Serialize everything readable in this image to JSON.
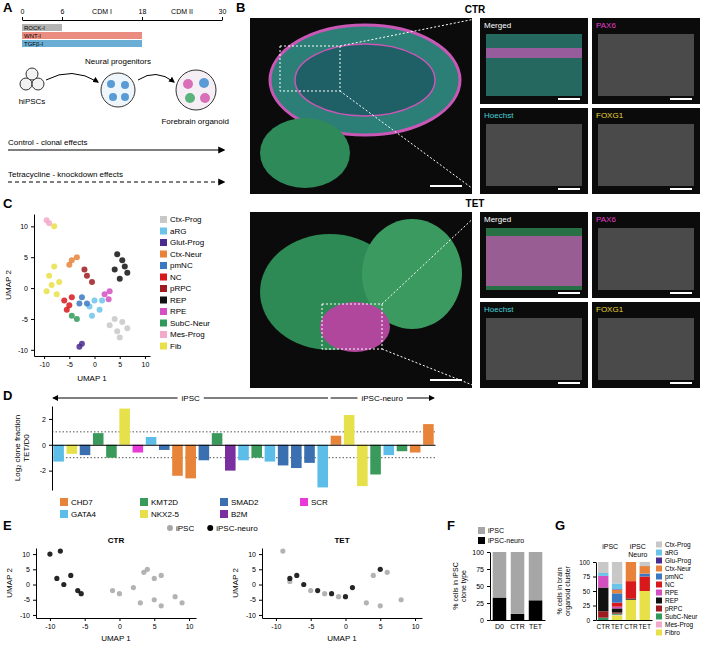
{
  "panel_letters": [
    "A",
    "B",
    "C",
    "D",
    "E",
    "F",
    "G"
  ],
  "panel_a": {
    "timeline": {
      "range": [
        0,
        30
      ],
      "ticks": [
        0,
        6,
        18,
        30
      ],
      "phases": [
        {
          "label": "CDM I",
          "from": 6,
          "to": 18
        },
        {
          "label": "CDM II",
          "from": 18,
          "to": 30
        }
      ]
    },
    "treatments": [
      {
        "label": "ROCK-I",
        "from": 0,
        "to": 6,
        "color": "#b3b3b3"
      },
      {
        "label": "WNT-I",
        "from": 0,
        "to": 18,
        "color": "#ea8c80"
      },
      {
        "label": "TGFβ-I",
        "from": 0,
        "to": 18,
        "color": "#6aaed6"
      }
    ],
    "stages": [
      "hiPSCs",
      "Neural progenitors",
      "Forebrain organoid"
    ],
    "arrows": [
      {
        "label": "Control - clonal effects",
        "line_style": "solid"
      },
      {
        "label": "Tetracycline - knockdown effects",
        "line_style": "dashed"
      }
    ]
  },
  "panel_b": {
    "conditions": [
      "CTR",
      "TET"
    ],
    "channels": [
      {
        "label": "Merged",
        "color": "#ffffff"
      },
      {
        "label": "PAX6",
        "color": "#e23fc8"
      },
      {
        "label": "Hoechst",
        "color": "#49d2d6"
      },
      {
        "label": "FOXG1",
        "color": "#ecd63a"
      }
    ]
  },
  "chart_data": [
    {
      "type": "scatter",
      "x_label": "UMAP 1",
      "y_label": "UMAP 2",
      "xlim": [
        -12,
        11
      ],
      "ylim": [
        -11,
        12
      ],
      "xticks": [
        -10,
        -5,
        0,
        5,
        10
      ],
      "yticks": [
        -10,
        -5,
        0,
        5,
        10
      ],
      "grid": false,
      "legend": "right",
      "series": [
        {
          "name": "Ctx-Prog",
          "color": "#c8c8c8",
          "x": [
            3,
            4.5,
            5.5,
            6.5,
            4,
            5
          ],
          "values": [
            -6,
            -7,
            -5.5,
            -6.5,
            -5,
            -8
          ]
        },
        {
          "name": "aRG",
          "color": "#6cc3ea",
          "x": [
            -1,
            0,
            1,
            -0.5,
            1.5
          ],
          "values": [
            -3,
            -2,
            -3.5,
            -4.5,
            -2
          ]
        },
        {
          "name": "Glut-Prog",
          "color": "#4a2c8f",
          "x": [
            -3,
            -2.5
          ],
          "values": [
            -9.5,
            -9
          ]
        },
        {
          "name": "Ctx-Neur",
          "color": "#e8823a",
          "x": [
            -4.5,
            -3.5,
            -5
          ],
          "values": [
            4.5,
            5,
            3.8
          ]
        },
        {
          "name": "pmNC",
          "color": "#3b78c2",
          "x": [
            -2.5,
            -1.5,
            -3
          ],
          "values": [
            -1.5,
            -2.5,
            -2.5
          ]
        },
        {
          "name": "NC",
          "color": "#d7191c",
          "x": [
            -6,
            -5,
            -4.5,
            -5.5
          ],
          "values": [
            -2,
            -2.8,
            -1.5,
            -3.5
          ]
        },
        {
          "name": "pRPC",
          "color": "#9e1b1f",
          "x": [
            -1.5,
            -0.5,
            -2
          ],
          "values": [
            2,
            1,
            3
          ]
        },
        {
          "name": "REP",
          "color": "#111111",
          "x": [
            4,
            5.5,
            6.5,
            5,
            4.5,
            6
          ],
          "values": [
            3,
            4.5,
            2.5,
            1.5,
            5.5,
            3.5
          ]
        },
        {
          "name": "RPE",
          "color": "#d44fc0",
          "x": [
            2,
            2.8,
            3
          ],
          "values": [
            -1,
            -1.8,
            -0.5
          ]
        },
        {
          "name": "SubC-Neur",
          "color": "#2f9a5a",
          "x": [
            -4.5,
            -3.5
          ],
          "values": [
            -4.5,
            -5
          ]
        },
        {
          "name": "Mes-Prog",
          "color": "#f3a9c9",
          "x": [
            -9.5,
            -9
          ],
          "values": [
            11,
            10.5
          ]
        },
        {
          "name": "Fib",
          "color": "#e8e048",
          "x": [
            -9,
            -8,
            -7,
            -9.5,
            -8.5,
            -7.5,
            -8
          ],
          "values": [
            2,
            3.5,
            1,
            -0.5,
            0.5,
            -1,
            10
          ]
        }
      ]
    },
    {
      "type": "bar",
      "y_label": "Log₂ clone fraction TET/D0",
      "categories": [
        null,
        null,
        null,
        null,
        null,
        null,
        null,
        null,
        null,
        null,
        null,
        null,
        null,
        null,
        null,
        null,
        null,
        null,
        null,
        null,
        null,
        null,
        null,
        null,
        null,
        null,
        null,
        null,
        null
      ],
      "ylim": [
        -3.5,
        3
      ],
      "yticks": [
        -2,
        0,
        2
      ],
      "reference_lines": [
        1,
        -1
      ],
      "grid": false,
      "legend": "bottom",
      "tick_labels": "y",
      "groups": [
        {
          "label": "iPSC",
          "from": 0,
          "to": 20
        },
        {
          "label": "iPSC-neuro",
          "from": 21,
          "to": 28
        }
      ],
      "series": [
        {
          "name": "CHD7",
          "color": "#e8833a",
          "values": [
            null,
            null,
            null,
            null,
            null,
            null,
            null,
            null,
            null,
            -2.4,
            -2.6,
            null,
            null,
            null,
            null,
            null,
            null,
            null,
            null,
            null,
            null,
            0.7,
            null,
            null,
            null,
            null,
            null,
            -0.6,
            1.6
          ]
        },
        {
          "name": "KMT2D",
          "color": "#3a9a5b",
          "values": [
            null,
            null,
            null,
            0.9,
            -1.0,
            null,
            null,
            null,
            null,
            null,
            null,
            null,
            0.9,
            null,
            null,
            -1.0,
            null,
            null,
            null,
            null,
            null,
            null,
            null,
            null,
            -2.3,
            null,
            -0.5,
            null,
            null
          ]
        },
        {
          "name": "SMAD2",
          "color": "#3a6fb0",
          "values": [
            null,
            null,
            -0.8,
            null,
            null,
            null,
            null,
            null,
            -0.4,
            null,
            null,
            -1.2,
            null,
            null,
            null,
            null,
            null,
            -1.6,
            -1.8,
            -1.4,
            null,
            null,
            null,
            null,
            null,
            null,
            null,
            null,
            null
          ]
        },
        {
          "name": "SCR",
          "color": "#e83ad8",
          "values": [
            null,
            null,
            null,
            null,
            null,
            null,
            -0.6,
            null,
            null,
            null,
            null,
            null,
            null,
            null,
            null,
            null,
            null,
            null,
            null,
            null,
            null,
            null,
            null,
            null,
            null,
            null,
            null,
            null,
            null
          ]
        },
        {
          "name": "GATA4",
          "color": "#5bbde8",
          "values": [
            -1.3,
            null,
            null,
            null,
            null,
            null,
            null,
            0.6,
            null,
            null,
            null,
            null,
            null,
            null,
            -1.2,
            null,
            -1.3,
            null,
            null,
            null,
            -3.3,
            null,
            null,
            null,
            null,
            -0.8,
            null,
            null,
            null
          ]
        },
        {
          "name": "NKX2-5",
          "color": "#e6e04a",
          "values": [
            null,
            -0.7,
            null,
            null,
            null,
            2.8,
            null,
            null,
            null,
            null,
            null,
            null,
            null,
            null,
            null,
            null,
            null,
            null,
            null,
            null,
            null,
            null,
            2.3,
            -3.2,
            null,
            null,
            null,
            null,
            null
          ]
        },
        {
          "name": "B2M",
          "color": "#7a2fa0",
          "values": [
            null,
            null,
            null,
            null,
            null,
            null,
            null,
            null,
            null,
            null,
            null,
            null,
            null,
            -2.0,
            null,
            null,
            null,
            null,
            null,
            null,
            null,
            null,
            null,
            null,
            null,
            null,
            null,
            null,
            null
          ]
        }
      ]
    },
    {
      "type": "scatter",
      "x_label": "UMAP 1",
      "y_label": "UMAP 2",
      "xlim": [
        -12,
        11
      ],
      "ylim": [
        -11,
        12
      ],
      "xticks": [
        -10,
        -5,
        0,
        5,
        10
      ],
      "yticks": [
        -10,
        -5,
        0,
        5,
        10
      ],
      "grid": false,
      "legend": "top",
      "panels": [
        {
          "title": "CTR",
          "series": [
            {
              "name": "iPSC",
              "color": "#a6a6a6",
              "x": [
                3,
                5,
                6,
                4,
                5,
                0,
                -1,
                2,
                8,
                9,
                6,
                3.5
              ],
              "values": [
                -6,
                -5,
                3,
                5,
                2,
                -3,
                -2,
                -1,
                -4,
                -6,
                -7,
                4
              ]
            },
            {
              "name": "iPSC-neuro",
              "color": "#000000",
              "x": [
                -9,
                -8,
                -7,
                -10,
                -6,
                -5.5,
                -8.5
              ],
              "values": [
                2,
                0,
                3,
                10,
                -2,
                -3,
                11
              ]
            }
          ]
        },
        {
          "title": "TET",
          "series": [
            {
              "color": "#a6a6a6",
              "x": [
                3,
                5,
                -5,
                -3,
                -8,
                6,
                8,
                -1,
                4,
                -9
              ],
              "values": [
                -6,
                -7,
                -2,
                -3,
                1,
                4,
                -5,
                -4,
                3,
                11
              ]
            },
            {
              "color": "#000000",
              "x": [
                -4,
                -8,
                -6,
                -2,
                0,
                5,
                -7,
                1
              ],
              "values": [
                -2,
                2,
                0,
                -3,
                -4,
                5,
                3,
                -1
              ]
            }
          ]
        }
      ]
    },
    {
      "type": "bar",
      "stacked": true,
      "y_label": "% cells in iPSC clone type",
      "categories": [
        "D0",
        "CTR",
        "TET"
      ],
      "ylim": [
        0,
        100
      ],
      "yticks": [
        0,
        25,
        50,
        75,
        100
      ],
      "grid": false,
      "legend": "top",
      "series": [
        {
          "name": "iPSC-neuro",
          "color": "#000000",
          "values": [
            33,
            9,
            29
          ]
        },
        {
          "name": "iPSC",
          "color": "#a6a6a6",
          "values": [
            67,
            91,
            71
          ]
        }
      ]
    },
    {
      "type": "bar",
      "stacked": true,
      "y_label": "% cells in brain organoid cluster",
      "categories": [
        "CTR",
        "TET",
        "CTR",
        "TET"
      ],
      "ylim": [
        0,
        100
      ],
      "yticks": [
        0,
        25,
        50,
        75,
        100
      ],
      "grid": false,
      "legend": "right",
      "groups": [
        {
          "label": "iPSC",
          "from": 0,
          "to": 1
        },
        {
          "label": "iPSC Neuro",
          "from": 2,
          "to": 3
        }
      ],
      "series": [
        {
          "name": "Fibro",
          "color": "#e8e048",
          "values": [
            0,
            8,
            35,
            50
          ]
        },
        {
          "name": "Mes-Prog",
          "color": "#f3a9c9",
          "values": [
            0,
            1,
            0,
            0
          ]
        },
        {
          "name": "SubC-Neur",
          "color": "#2f9a5a",
          "values": [
            4,
            2,
            0,
            0
          ]
        },
        {
          "name": "pRPC",
          "color": "#9e1b1f",
          "values": [
            11,
            2,
            0,
            0
          ]
        },
        {
          "name": "REP",
          "color": "#111111",
          "values": [
            41,
            7,
            2,
            0
          ]
        },
        {
          "name": "RPE",
          "color": "#d44fc0",
          "values": [
            20,
            3,
            0,
            0
          ]
        },
        {
          "name": "NC",
          "color": "#d7191c",
          "values": [
            0,
            7,
            30,
            25
          ]
        },
        {
          "name": "pmNC",
          "color": "#3b78c2",
          "values": [
            0,
            16,
            0,
            5
          ]
        },
        {
          "name": "Ctx-Neur",
          "color": "#e8823a",
          "values": [
            0,
            6,
            33,
            13
          ]
        },
        {
          "name": "Glu-Prog",
          "color": "#4a2c8f",
          "values": [
            0,
            1,
            0,
            0
          ]
        },
        {
          "name": "aRG",
          "color": "#6cc3ea",
          "values": [
            5,
            10,
            0,
            0
          ]
        },
        {
          "name": "Ctx-Prog",
          "color": "#c8c8c8",
          "values": [
            19,
            37,
            0,
            7
          ]
        }
      ]
    }
  ]
}
